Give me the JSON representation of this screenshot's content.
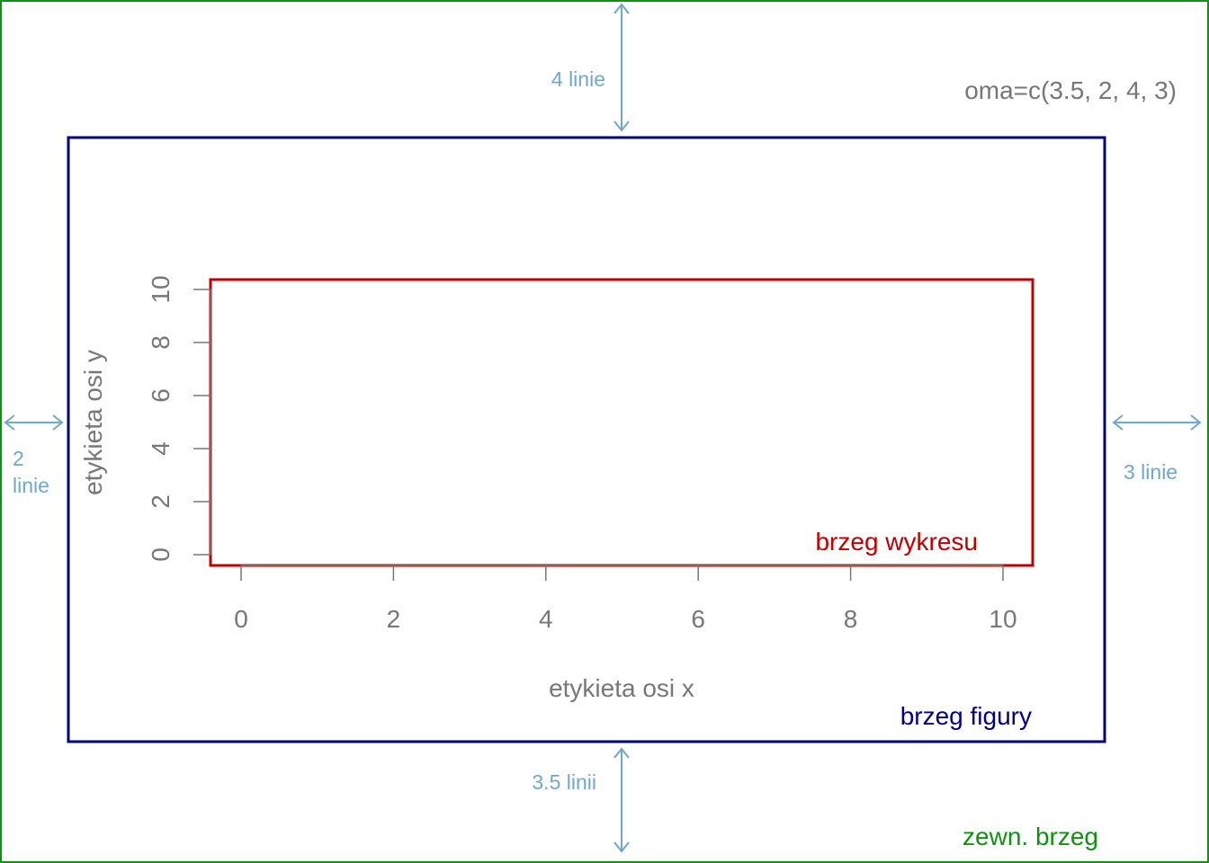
{
  "labels": {
    "oma": "oma=c(3.5, 2, 4, 3)",
    "top": "4 linie",
    "left_line1": "2",
    "left_line2": "linie",
    "right": "3 linie",
    "bottom": "3.5 linii",
    "outer": "zewn. brzeg",
    "figure": "brzeg figury",
    "plot": "brzeg wykresu"
  },
  "axes": {
    "xlabel": "etykieta osi x",
    "ylabel": "etykieta osi y",
    "x_ticks": [
      "0",
      "2",
      "4",
      "6",
      "8",
      "10"
    ],
    "y_ticks": [
      "0",
      "2",
      "4",
      "6",
      "8",
      "10"
    ]
  },
  "colors": {
    "outer_border": "#119111",
    "figure_border": "#00007f",
    "plot_border": "#c00000",
    "arrow": "#6fa8cf",
    "axis_text": "#777777",
    "outer_text": "#119111",
    "figure_text": "#00007f",
    "plot_text": "#c00000",
    "arrow_text": "#6fa8cf"
  }
}
